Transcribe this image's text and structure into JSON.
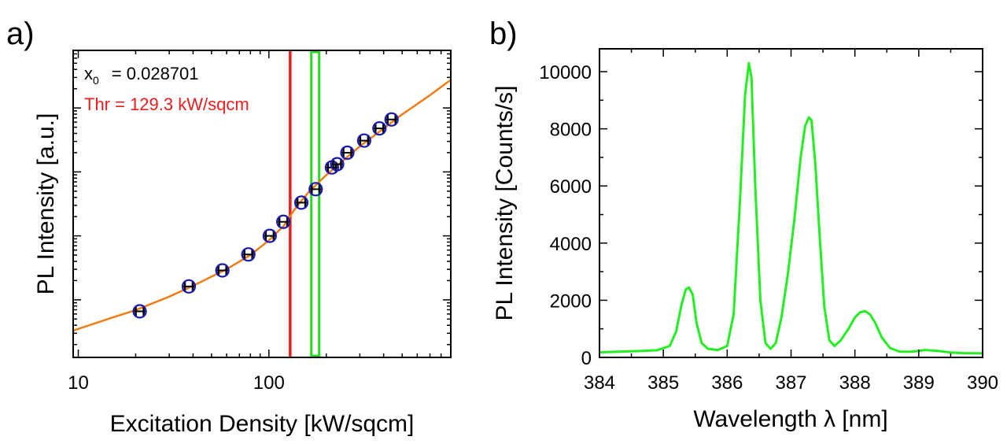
{
  "chart_data": [
    {
      "type": "scatter",
      "panel_label": "a)",
      "xlabel": "Excitation Density [kW/sqcm]",
      "ylabel": "PL Intensity [a.u.]",
      "x_scale": "log",
      "y_scale": "log",
      "xlim": [
        9.4,
        900
      ],
      "y_decades_visible": 4.8,
      "x_ticks": [
        {
          "value": 10,
          "label": "10"
        },
        {
          "value": 100,
          "label": "100"
        }
      ],
      "grid": false,
      "annotations": {
        "x0_label": "x",
        "x0_sub": "0",
        "x0_value": "= 0.028701",
        "threshold_text": "Thr = 129.3 kW/sqcm",
        "threshold_value": 129.3,
        "threshold_color": "#ee1c1c",
        "highlight_x": 175,
        "highlight_color": "#22dd22"
      },
      "series": [
        {
          "kind": "points",
          "marker_color": "#1a1ab0",
          "x": [
            21,
            38,
            57,
            78,
            101,
            119,
            148,
            176,
            214,
            228,
            258,
            316,
            380,
            440
          ],
          "y": [
            0.72,
            1.11,
            1.36,
            1.61,
            1.9,
            2.12,
            2.42,
            2.63,
            2.97,
            3.02,
            3.2,
            3.39,
            3.58,
            3.72
          ]
        },
        {
          "kind": "line",
          "color": "#f07d14",
          "x": [
            9.4,
            15,
            20,
            30,
            40,
            60,
            80,
            100,
            120,
            130,
            140,
            160,
            180,
            200,
            250,
            300,
            400,
            500,
            700,
            900
          ],
          "y": [
            0.42,
            0.62,
            0.74,
            0.95,
            1.12,
            1.38,
            1.6,
            1.83,
            2.06,
            2.22,
            2.36,
            2.57,
            2.72,
            2.85,
            3.1,
            3.3,
            3.58,
            3.8,
            4.1,
            4.34
          ]
        }
      ]
    },
    {
      "type": "line",
      "panel_label": "b)",
      "xlabel": "Wavelength λ [nm]",
      "ylabel": "PL Intensity [Counts/s]",
      "xlim": [
        384,
        390
      ],
      "ylim": [
        0,
        10800
      ],
      "x_ticks": [
        384,
        385,
        386,
        387,
        388,
        389,
        390
      ],
      "y_ticks": [
        0,
        2000,
        4000,
        6000,
        8000,
        10000
      ],
      "grid": false,
      "series": [
        {
          "color": "#22ee22",
          "x": [
            384.0,
            384.3,
            384.6,
            384.9,
            385.1,
            385.2,
            385.28,
            385.35,
            385.4,
            385.46,
            385.52,
            385.6,
            385.7,
            385.85,
            386.0,
            386.1,
            386.2,
            386.28,
            386.34,
            386.38,
            386.44,
            386.52,
            386.6,
            386.68,
            386.76,
            386.85,
            386.95,
            387.05,
            387.15,
            387.22,
            387.28,
            387.32,
            387.38,
            387.45,
            387.52,
            387.6,
            387.68,
            387.78,
            387.9,
            388.0,
            388.08,
            388.16,
            388.24,
            388.32,
            388.42,
            388.55,
            388.7,
            388.9,
            389.1,
            389.3,
            389.5,
            389.7,
            390.0
          ],
          "y": [
            180,
            200,
            220,
            250,
            400,
            900,
            1800,
            2380,
            2450,
            2200,
            1200,
            500,
            300,
            260,
            400,
            1500,
            5500,
            9200,
            10300,
            9800,
            6000,
            2000,
            500,
            300,
            500,
            1400,
            2900,
            4800,
            7000,
            8100,
            8400,
            8300,
            6800,
            4200,
            1800,
            600,
            400,
            600,
            1000,
            1400,
            1580,
            1620,
            1500,
            1200,
            700,
            330,
            200,
            200,
            260,
            230,
            170,
            150,
            140
          ]
        }
      ]
    }
  ]
}
